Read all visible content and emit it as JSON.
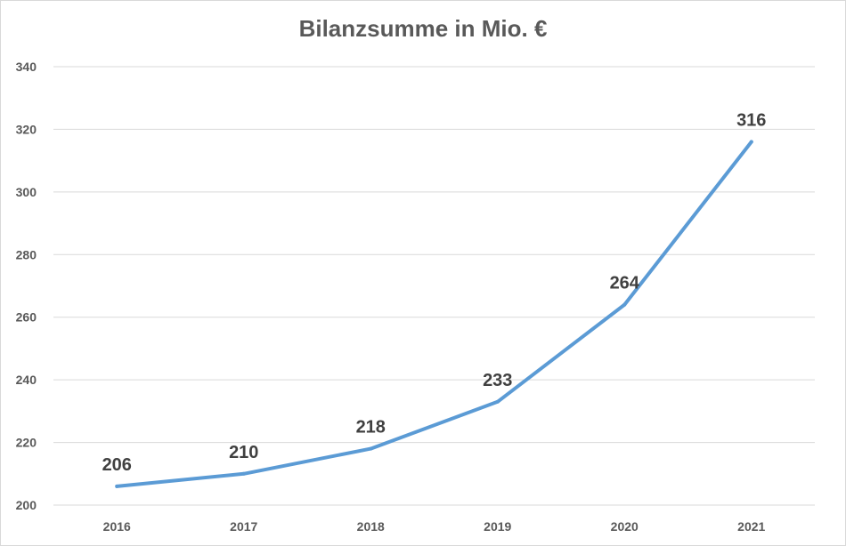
{
  "chart_data": {
    "type": "line",
    "title": "Bilanzsumme in Mio. €",
    "categories": [
      "2016",
      "2017",
      "2018",
      "2019",
      "2020",
      "2021"
    ],
    "series": [
      {
        "values": [
          206,
          210,
          218,
          233,
          264,
          316
        ]
      }
    ],
    "data_labels": [
      "206",
      "210",
      "218",
      "233",
      "264",
      "316"
    ],
    "ylim": [
      200,
      340
    ],
    "y_ticks": [
      200,
      220,
      240,
      260,
      280,
      300,
      320,
      340
    ],
    "xlabel": "",
    "ylabel": "",
    "grid": true,
    "legend": "none",
    "colors": {
      "line": "#5b9bd5",
      "grid": "#d9d9d9",
      "axis_text": "#595959",
      "label_text": "#404040"
    }
  }
}
